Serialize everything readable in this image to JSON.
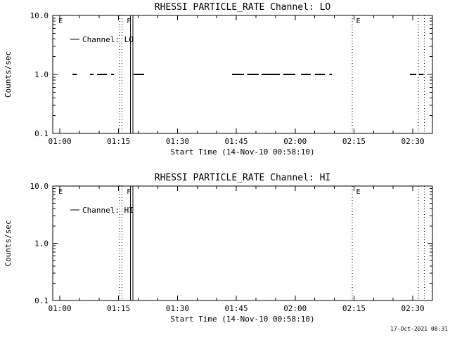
{
  "window": {
    "footer_timestamp": "17-Oct-2021 08:31",
    "fg_color": "#000000",
    "bg_color": "#ffffff"
  },
  "chart_data": [
    {
      "type": "line",
      "title": "RHESSI PARTICLE_RATE Channel: LO",
      "xlabel": "Start Time (14-Nov-10 00:58:10)",
      "ylabel": "Counts/sec",
      "yscale": "log",
      "ylim": [
        0.1,
        10.0
      ],
      "ytick_values": [
        10.0,
        1.0,
        0.1
      ],
      "ytick_labels": [
        "10.0",
        "1.0",
        "0.1"
      ],
      "x_minutes_range": [
        58.2,
        155.0
      ],
      "xticks": [
        {
          "minutes": 60,
          "label": "01:00"
        },
        {
          "minutes": 75,
          "label": "01:15"
        },
        {
          "minutes": 90,
          "label": "01:30"
        },
        {
          "minutes": 105,
          "label": "01:45"
        },
        {
          "minutes": 120,
          "label": "02:00"
        },
        {
          "minutes": 135,
          "label": "02:15"
        },
        {
          "minutes": 150,
          "label": "02:30"
        }
      ],
      "legend_label": "Channel: LO",
      "event_markers": [
        {
          "minutes": 59.3,
          "label": "E"
        },
        {
          "minutes": 76.7,
          "label": "F"
        },
        {
          "minutes": 135.2,
          "label": "E"
        }
      ],
      "vlines": [
        {
          "minutes": 75.2,
          "style": "dotted"
        },
        {
          "minutes": 75.9,
          "style": "dotted"
        },
        {
          "minutes": 78.0,
          "style": "solid"
        },
        {
          "minutes": 78.6,
          "style": "solid"
        },
        {
          "minutes": 134.6,
          "style": "dotted"
        },
        {
          "minutes": 151.4,
          "style": "dotted"
        },
        {
          "minutes": 152.9,
          "style": "dotted"
        }
      ],
      "data_segments_at_counts": 1.0,
      "segments_minutes": [
        [
          63.2,
          64.4
        ],
        [
          67.7,
          68.6
        ],
        [
          69.5,
          72.0
        ],
        [
          73.1,
          73.8
        ],
        [
          78.8,
          81.5
        ],
        [
          103.9,
          107.0
        ],
        [
          107.8,
          110.7
        ],
        [
          111.4,
          116.1
        ],
        [
          117.0,
          120.0
        ],
        [
          121.5,
          124.0
        ],
        [
          125.1,
          127.6
        ],
        [
          128.7,
          129.4
        ],
        [
          149.3,
          150.9
        ],
        [
          151.6,
          152.8
        ]
      ]
    },
    {
      "type": "line",
      "title": "RHESSI PARTICLE_RATE Channel: HI",
      "xlabel": "Start Time (14-Nov-10 00:58:10)",
      "ylabel": "Counts/sec",
      "yscale": "log",
      "ylim": [
        0.1,
        10.0
      ],
      "ytick_values": [
        10.0,
        1.0,
        0.1
      ],
      "ytick_labels": [
        "10.0",
        "1.0",
        "0.1"
      ],
      "x_minutes_range": [
        58.2,
        155.0
      ],
      "xticks": [
        {
          "minutes": 60,
          "label": "01:00"
        },
        {
          "minutes": 75,
          "label": "01:15"
        },
        {
          "minutes": 90,
          "label": "01:30"
        },
        {
          "minutes": 105,
          "label": "01:45"
        },
        {
          "minutes": 120,
          "label": "02:00"
        },
        {
          "minutes": 135,
          "label": "02:15"
        },
        {
          "minutes": 150,
          "label": "02:30"
        }
      ],
      "legend_label": "Channel: HI",
      "event_markers": [
        {
          "minutes": 59.3,
          "label": "E"
        },
        {
          "minutes": 76.7,
          "label": "F"
        },
        {
          "minutes": 135.2,
          "label": "E"
        }
      ],
      "vlines": [
        {
          "minutes": 75.2,
          "style": "dotted"
        },
        {
          "minutes": 75.9,
          "style": "dotted"
        },
        {
          "minutes": 78.0,
          "style": "solid"
        },
        {
          "minutes": 78.6,
          "style": "solid"
        },
        {
          "minutes": 134.6,
          "style": "dotted"
        },
        {
          "minutes": 151.4,
          "style": "dotted"
        },
        {
          "minutes": 152.9,
          "style": "dotted"
        }
      ],
      "data_segments_at_counts": 1.0,
      "segments_minutes": []
    }
  ]
}
